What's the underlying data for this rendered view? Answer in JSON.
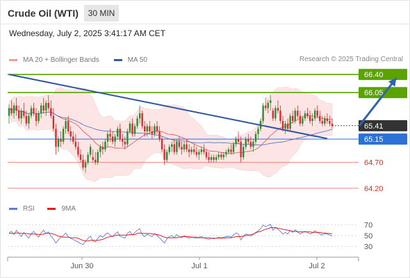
{
  "header": {
    "title": "Crude Oil (WTI)",
    "timeframe": "30 MIN"
  },
  "timestamp": "Wednesday, July 2, 2025 3:41:17 AM CET",
  "copyright": "Research © 2025 Trading Central",
  "legend": [
    {
      "label": "MA 20 + Bollinger Bands",
      "color": "#f08080"
    },
    {
      "label": "MA 50",
      "color": "#3a5b9a"
    }
  ],
  "rsi_legend": [
    {
      "label": "RSI",
      "color": "#5b7fd8"
    },
    {
      "label": "9MA",
      "color": "#e02020"
    }
  ],
  "colors": {
    "bull": "#2e8b2e",
    "bear": "#d03030",
    "resistance": "#5aa300",
    "current": "#333333",
    "ma50_level": "#2a72d6",
    "support": "#f08080",
    "trendline": "#2f55a0",
    "band_fill": "#fde3e3",
    "ma20": "#e06060",
    "ma50": "#5a78c0",
    "arrow": "#2f65b0"
  },
  "chart_data": [
    {
      "type": "candlestick",
      "title": "Crude Oil (WTI)",
      "ylim": [
        64.05,
        66.55
      ],
      "x_ticks": [
        "Jun 30",
        "Jul 1",
        "Jul 2"
      ],
      "price_levels": [
        {
          "value": 66.4,
          "label": "66.40",
          "kind": "resistance"
        },
        {
          "value": 66.05,
          "label": "66.05",
          "kind": "resistance"
        },
        {
          "value": 65.41,
          "label": "65.41",
          "kind": "current"
        },
        {
          "value": 65.15,
          "label": "65.15",
          "kind": "ma50"
        },
        {
          "value": 64.7,
          "label": "64.70",
          "kind": "support"
        },
        {
          "value": 64.2,
          "label": "64.20",
          "kind": "support"
        }
      ],
      "trendline": [
        {
          "i": 0,
          "v": 66.4
        },
        {
          "i": 129,
          "v": 65.16
        }
      ],
      "projection_arrow": [
        {
          "i": 142,
          "v": 65.41
        },
        {
          "i": 157,
          "v": 66.33
        }
      ],
      "candles": [
        [
          65.6,
          65.82,
          65.45,
          65.75
        ],
        [
          65.75,
          65.9,
          65.6,
          65.65
        ],
        [
          65.65,
          65.85,
          65.55,
          65.8
        ],
        [
          65.8,
          65.95,
          65.6,
          65.7
        ],
        [
          65.7,
          65.8,
          65.5,
          65.55
        ],
        [
          65.55,
          65.75,
          65.45,
          65.7
        ],
        [
          65.7,
          65.85,
          65.55,
          65.6
        ],
        [
          65.6,
          65.7,
          65.4,
          65.45
        ],
        [
          65.45,
          65.65,
          65.35,
          65.6
        ],
        [
          65.6,
          65.8,
          65.55,
          65.75
        ],
        [
          65.75,
          65.85,
          65.6,
          65.65
        ],
        [
          65.65,
          65.75,
          65.4,
          65.5
        ],
        [
          65.5,
          65.7,
          65.45,
          65.65
        ],
        [
          65.65,
          65.85,
          65.55,
          65.8
        ],
        [
          65.8,
          65.95,
          65.65,
          65.7
        ],
        [
          65.7,
          65.9,
          65.6,
          65.85
        ],
        [
          65.85,
          66.0,
          65.7,
          65.75
        ],
        [
          65.75,
          65.9,
          65.55,
          65.6
        ],
        [
          65.6,
          65.75,
          65.3,
          65.35
        ],
        [
          65.35,
          65.45,
          64.85,
          65.0
        ],
        [
          65.0,
          65.2,
          64.9,
          65.15
        ],
        [
          65.15,
          65.3,
          65.0,
          65.1
        ],
        [
          65.1,
          65.4,
          65.05,
          65.35
        ],
        [
          65.35,
          65.55,
          65.25,
          65.5
        ],
        [
          65.5,
          65.6,
          65.25,
          65.3
        ],
        [
          65.3,
          65.4,
          65.1,
          65.2
        ],
        [
          65.2,
          65.3,
          65.05,
          65.1
        ],
        [
          65.1,
          65.25,
          64.95,
          65.0
        ],
        [
          65.0,
          65.1,
          64.8,
          64.85
        ],
        [
          64.85,
          64.95,
          64.7,
          64.75
        ],
        [
          64.75,
          64.85,
          64.55,
          64.6
        ],
        [
          64.6,
          64.75,
          64.5,
          64.7
        ],
        [
          64.7,
          64.9,
          64.65,
          64.85
        ],
        [
          64.85,
          65.05,
          64.8,
          65.0
        ],
        [
          64.8,
          64.95,
          64.7,
          64.75
        ],
        [
          64.75,
          64.9,
          64.65,
          64.7
        ],
        [
          64.7,
          64.95,
          64.65,
          64.9
        ],
        [
          64.9,
          65.05,
          64.8,
          65.0
        ],
        [
          65.0,
          65.1,
          64.85,
          64.95
        ],
        [
          64.95,
          65.15,
          64.9,
          65.1
        ],
        [
          65.1,
          65.3,
          65.0,
          65.25
        ],
        [
          65.25,
          65.35,
          65.1,
          65.2
        ],
        [
          65.2,
          65.3,
          65.05,
          65.1
        ],
        [
          65.1,
          65.25,
          65.0,
          65.2
        ],
        [
          65.2,
          65.4,
          65.15,
          65.35
        ],
        [
          65.35,
          65.45,
          65.1,
          65.15
        ],
        [
          65.15,
          65.25,
          65.0,
          65.1
        ],
        [
          65.1,
          65.2,
          64.95,
          65.05
        ],
        [
          65.05,
          65.35,
          65.0,
          65.3
        ],
        [
          65.3,
          65.5,
          65.25,
          65.45
        ],
        [
          65.45,
          65.55,
          65.2,
          65.25
        ],
        [
          65.25,
          65.45,
          65.2,
          65.4
        ],
        [
          65.4,
          65.6,
          65.35,
          65.55
        ],
        [
          65.55,
          65.8,
          65.45,
          65.65
        ],
        [
          65.65,
          65.7,
          65.35,
          65.4
        ],
        [
          65.4,
          65.5,
          65.2,
          65.3
        ],
        [
          65.3,
          65.45,
          65.2,
          65.4
        ],
        [
          65.4,
          65.5,
          65.25,
          65.3
        ],
        [
          65.3,
          65.4,
          65.15,
          65.25
        ],
        [
          65.25,
          65.45,
          65.2,
          65.4
        ],
        [
          65.4,
          65.5,
          65.25,
          65.3
        ],
        [
          65.3,
          65.4,
          65.1,
          65.15
        ],
        [
          65.15,
          65.2,
          64.9,
          64.95
        ],
        [
          64.95,
          65.05,
          64.65,
          64.75
        ],
        [
          64.75,
          64.95,
          64.7,
          64.9
        ],
        [
          64.9,
          65.05,
          64.85,
          65.0
        ],
        [
          65.0,
          65.1,
          64.9,
          65.05
        ],
        [
          65.05,
          65.15,
          64.85,
          64.9
        ],
        [
          64.9,
          65.15,
          64.85,
          65.1
        ],
        [
          65.1,
          65.2,
          64.95,
          65.0
        ],
        [
          65.0,
          65.1,
          64.85,
          64.95
        ],
        [
          64.95,
          65.1,
          64.9,
          65.05
        ],
        [
          65.05,
          65.15,
          64.9,
          64.95
        ],
        [
          64.95,
          65.05,
          64.8,
          64.9
        ],
        [
          64.9,
          65.0,
          64.85,
          64.95
        ],
        [
          64.95,
          65.05,
          64.85,
          64.9
        ],
        [
          64.9,
          65.0,
          64.8,
          64.85
        ],
        [
          64.85,
          64.95,
          64.75,
          64.9
        ],
        [
          64.9,
          65.0,
          64.85,
          64.95
        ],
        [
          64.95,
          65.05,
          64.85,
          64.9
        ],
        [
          64.9,
          64.95,
          64.75,
          64.8
        ],
        [
          64.8,
          64.9,
          64.7,
          64.75
        ],
        [
          64.75,
          64.85,
          64.7,
          64.8
        ],
        [
          64.8,
          64.85,
          64.7,
          64.75
        ],
        [
          64.75,
          64.85,
          64.7,
          64.8
        ],
        [
          64.8,
          64.9,
          64.75,
          64.85
        ],
        [
          64.85,
          64.9,
          64.75,
          64.8
        ],
        [
          64.8,
          64.9,
          64.75,
          64.85
        ],
        [
          64.85,
          64.95,
          64.8,
          64.9
        ],
        [
          64.9,
          65.0,
          64.85,
          64.95
        ],
        [
          64.95,
          65.05,
          64.85,
          64.9
        ],
        [
          64.9,
          65.1,
          64.85,
          65.05
        ],
        [
          65.05,
          65.2,
          65.0,
          65.15
        ],
        [
          65.15,
          65.3,
          65.05,
          65.1
        ],
        [
          65.1,
          65.2,
          64.7,
          64.8
        ],
        [
          64.8,
          65.05,
          64.75,
          65.0
        ],
        [
          65.0,
          65.2,
          64.95,
          65.15
        ],
        [
          65.15,
          65.25,
          65.05,
          65.1
        ],
        [
          65.1,
          65.2,
          64.95,
          65.0
        ],
        [
          65.0,
          65.15,
          64.9,
          65.1
        ],
        [
          65.1,
          65.3,
          65.05,
          65.25
        ],
        [
          65.25,
          65.4,
          65.15,
          65.35
        ],
        [
          65.35,
          65.55,
          65.3,
          65.5
        ],
        [
          65.5,
          65.85,
          65.45,
          65.8
        ],
        [
          65.8,
          65.95,
          65.7,
          65.75
        ],
        [
          65.75,
          65.9,
          65.65,
          65.85
        ],
        [
          65.85,
          66.0,
          65.7,
          65.9
        ],
        [
          65.7,
          65.75,
          65.5,
          65.55
        ],
        [
          65.55,
          65.8,
          65.5,
          65.75
        ],
        [
          65.75,
          65.9,
          65.65,
          65.7
        ],
        [
          65.7,
          65.8,
          65.45,
          65.5
        ],
        [
          65.5,
          65.6,
          65.3,
          65.35
        ],
        [
          65.35,
          65.5,
          65.25,
          65.45
        ],
        [
          65.45,
          65.55,
          65.3,
          65.35
        ],
        [
          65.35,
          65.65,
          65.3,
          65.6
        ],
        [
          65.6,
          65.7,
          65.45,
          65.5
        ],
        [
          65.5,
          65.75,
          65.45,
          65.7
        ],
        [
          65.7,
          65.8,
          65.55,
          65.6
        ],
        [
          65.6,
          65.7,
          65.4,
          65.45
        ],
        [
          65.45,
          65.6,
          65.4,
          65.55
        ],
        [
          65.55,
          65.7,
          65.5,
          65.65
        ],
        [
          65.65,
          65.75,
          65.55,
          65.6
        ],
        [
          65.6,
          65.7,
          65.45,
          65.5
        ],
        [
          65.5,
          65.65,
          65.4,
          65.55
        ],
        [
          65.55,
          65.75,
          65.5,
          65.7
        ],
        [
          65.7,
          65.8,
          65.55,
          65.6
        ],
        [
          65.6,
          65.7,
          65.45,
          65.5
        ],
        [
          65.5,
          65.6,
          65.4,
          65.45
        ],
        [
          65.45,
          65.6,
          65.4,
          65.55
        ],
        [
          65.55,
          65.65,
          65.45,
          65.5
        ],
        [
          65.5,
          65.6,
          65.4,
          65.45
        ],
        [
          65.45,
          65.55,
          65.35,
          65.4
        ]
      ]
    },
    {
      "type": "line",
      "title": "RSI",
      "ylim": [
        20,
        80
      ],
      "y_ticks": [
        70,
        50,
        30
      ],
      "series": [
        {
          "name": "RSI",
          "values": [
            55,
            58,
            52,
            60,
            54,
            48,
            56,
            50,
            45,
            53,
            58,
            52,
            47,
            55,
            60,
            54,
            57,
            49,
            44,
            36,
            42,
            47,
            50,
            55,
            48,
            45,
            43,
            40,
            38,
            35,
            33,
            39,
            45,
            49,
            40,
            38,
            45,
            50,
            47,
            52,
            55,
            51,
            48,
            53,
            57,
            49,
            47,
            45,
            54,
            58,
            51,
            56,
            60,
            63,
            52,
            48,
            53,
            50,
            48,
            54,
            50,
            46,
            41,
            36,
            44,
            48,
            50,
            46,
            52,
            48,
            46,
            50,
            47,
            45,
            47,
            46,
            45,
            47,
            48,
            46,
            44,
            43,
            45,
            44,
            45,
            47,
            46,
            47,
            48,
            49,
            47,
            51,
            55,
            53,
            42,
            49,
            53,
            51,
            49,
            52,
            56,
            59,
            63,
            70,
            67,
            69,
            71,
            60,
            65,
            62,
            58,
            53,
            56,
            53,
            60,
            56,
            61,
            57,
            53,
            56,
            58,
            56,
            53,
            55,
            59,
            56,
            53,
            51,
            54,
            53,
            51,
            49
          ]
        },
        {
          "name": "9MA",
          "values": [
            54,
            54,
            54,
            55,
            55,
            54,
            54,
            54,
            53,
            53,
            53,
            53,
            52,
            52,
            53,
            54,
            54,
            54,
            53,
            51,
            49,
            48,
            47,
            47,
            47,
            46,
            46,
            46,
            45,
            43,
            41,
            40,
            40,
            41,
            41,
            41,
            41,
            42,
            43,
            45,
            47,
            48,
            49,
            50,
            51,
            51,
            51,
            51,
            51,
            52,
            52,
            52,
            54,
            55,
            54,
            54,
            54,
            54,
            53,
            53,
            52,
            51,
            49,
            47,
            46,
            46,
            46,
            46,
            46,
            47,
            48,
            48,
            48,
            48,
            47,
            47,
            47,
            46,
            46,
            46,
            46,
            46,
            45,
            45,
            45,
            45,
            45,
            45,
            46,
            46,
            46,
            47,
            48,
            48,
            48,
            49,
            50,
            51,
            52,
            53,
            55,
            57,
            58,
            60,
            62,
            63,
            65,
            65,
            65,
            64,
            63,
            62,
            61,
            60,
            59,
            58,
            58,
            57,
            57,
            57,
            57,
            57,
            57,
            56,
            56,
            56,
            56,
            55,
            55,
            54,
            54,
            53
          ]
        }
      ]
    }
  ]
}
